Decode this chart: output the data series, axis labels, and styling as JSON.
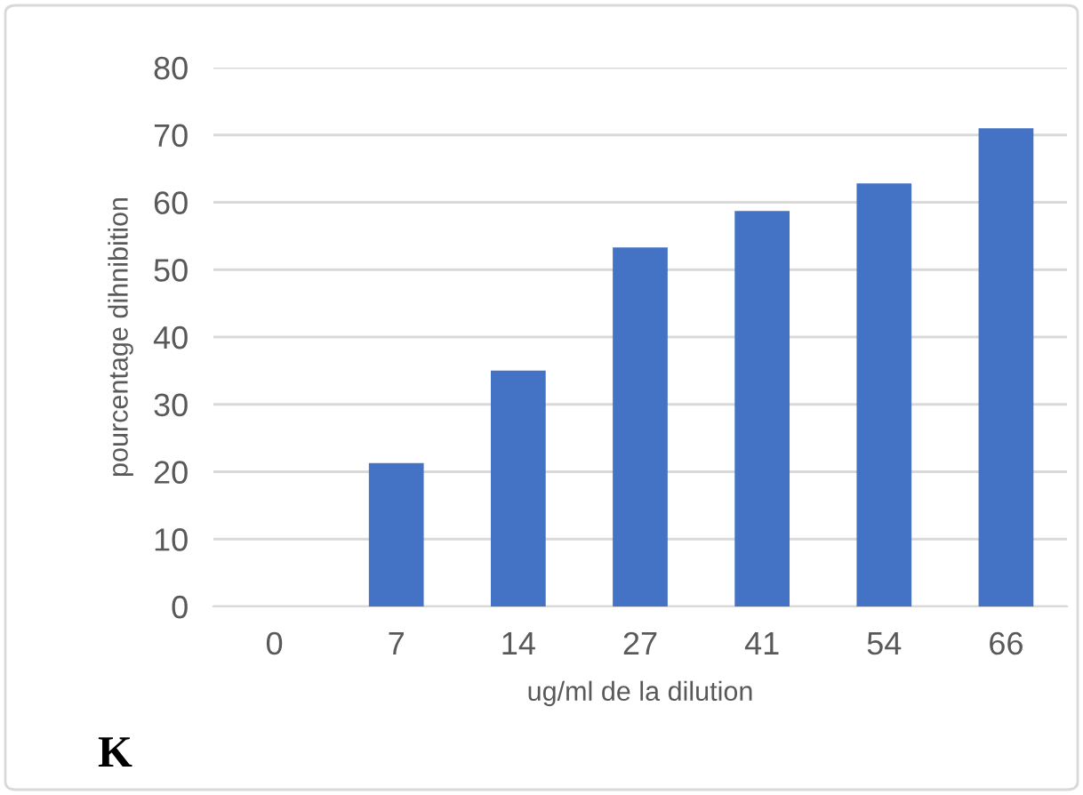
{
  "chart_data": {
    "type": "bar",
    "xlabel": "ug/ml de la dilution",
    "ylabel": "pourcentage dihnibition",
    "categories": [
      "0",
      "7",
      "14",
      "27",
      "41",
      "54",
      "66"
    ],
    "values": [
      0,
      21.3,
      35,
      53.3,
      58.7,
      62.8,
      71
    ],
    "color": "#4472c4",
    "ylim": [
      0,
      80
    ],
    "yticks": [
      0,
      10,
      20,
      30,
      40,
      50,
      60,
      70,
      80
    ],
    "grid": "y",
    "annotations": [
      "K"
    ]
  }
}
